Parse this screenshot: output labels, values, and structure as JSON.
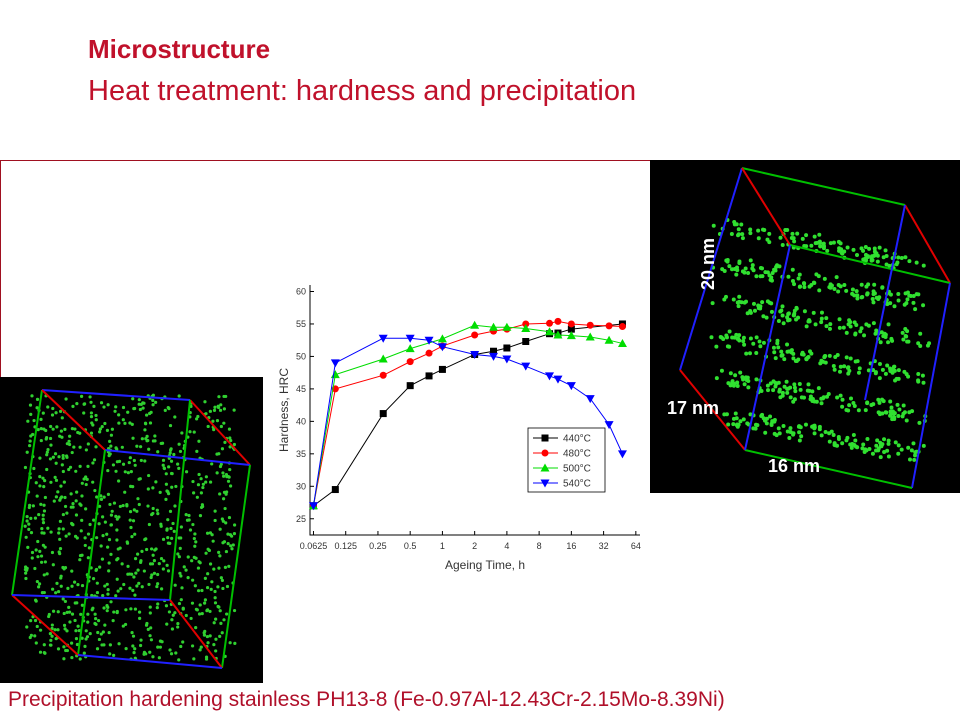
{
  "header": {
    "title": "Microstructure",
    "subtitle": "Heat treatment: hardness and precipitation"
  },
  "image_labels": [
    "20 nm",
    "17 nm",
    "16 nm"
  ],
  "caption": "Precipitation hardening stainless PH13-8 (Fe-0.97Al-12.43Cr-2.15Mo-8.39Ni)",
  "chart_data": {
    "type": "line",
    "x_label": "Ageing Time, h",
    "y_label": "Hardness, HRC",
    "xscale": "log2",
    "xlim": [
      0.058,
      70
    ],
    "xticks": [
      0.0625,
      0.125,
      0.25,
      0.5,
      1,
      2,
      4,
      8,
      16,
      32,
      64
    ],
    "ylim": [
      22.5,
      61
    ],
    "yticks": [
      25,
      30,
      35,
      40,
      45,
      50,
      55,
      60
    ],
    "legend": "lower right",
    "series": [
      {
        "name": "440°C",
        "color": "#000000",
        "marker": "square",
        "x": [
          0.0625,
          0.1,
          0.28,
          0.5,
          0.75,
          1,
          2,
          3,
          4,
          6,
          10,
          12,
          16,
          48
        ],
        "values": [
          27,
          29.5,
          41.2,
          45.5,
          47,
          48,
          50.3,
          50.8,
          51.3,
          52.3,
          53.5,
          53.6,
          54.2,
          55
        ]
      },
      {
        "name": "480°C",
        "color": "#ff0000",
        "marker": "circle",
        "x": [
          0.0625,
          0.1,
          0.28,
          0.5,
          0.75,
          1,
          2,
          3,
          4,
          6,
          10,
          12,
          16,
          24,
          36,
          48
        ],
        "values": [
          27,
          45,
          47.1,
          49.2,
          50.5,
          51.6,
          53.3,
          53.9,
          54.2,
          55,
          55.1,
          55.4,
          55,
          54.8,
          54.7,
          54.6
        ]
      },
      {
        "name": "500°C",
        "color": "#00dd00",
        "marker": "triangle-up",
        "x": [
          0.0625,
          0.1,
          0.28,
          0.5,
          1,
          2,
          3,
          4,
          6,
          10,
          12,
          16,
          24,
          36,
          48
        ],
        "values": [
          27,
          47.2,
          49.6,
          51.2,
          52.7,
          54.8,
          54.5,
          54.5,
          54.3,
          53.8,
          53.3,
          53.2,
          53,
          52.5,
          52
        ]
      },
      {
        "name": "540°C",
        "color": "#0000ff",
        "marker": "triangle-down",
        "x": [
          0.0625,
          0.1,
          0.28,
          0.5,
          0.75,
          1,
          2,
          3,
          4,
          6,
          10,
          12,
          16,
          24,
          36,
          48
        ],
        "values": [
          27,
          49,
          52.8,
          52.8,
          52.5,
          51.5,
          50.3,
          50,
          49.6,
          48.5,
          47,
          46.5,
          45.5,
          43.5,
          39.5,
          35
        ]
      }
    ]
  }
}
